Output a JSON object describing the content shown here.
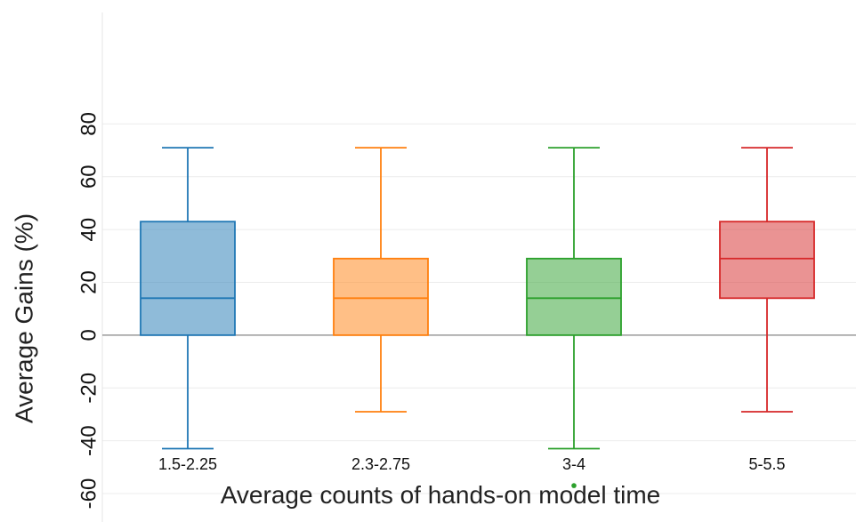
{
  "chart_data": {
    "type": "box",
    "title": "",
    "xlabel": "Average counts of hands-on model time",
    "ylabel": "Average Gains (%)",
    "ylim": [
      -60,
      100
    ],
    "yticks": [
      -60,
      -40,
      -20,
      0,
      20,
      40,
      60,
      80
    ],
    "grid": true,
    "categories": [
      "1.5-2.25",
      "2.3-2.75",
      "3-4",
      "5-5.5"
    ],
    "series": [
      {
        "category": "1.5-2.25",
        "color": "#1f77b4",
        "whisker_low": -43,
        "q1": 0,
        "median": 14,
        "q3": 43,
        "whisker_high": 71,
        "outliers": []
      },
      {
        "category": "2.3-2.75",
        "color": "#ff7f0e",
        "whisker_low": -29,
        "q1": 0,
        "median": 14,
        "q3": 29,
        "whisker_high": 71,
        "outliers": []
      },
      {
        "category": "3-4",
        "color": "#2ca02c",
        "whisker_low": -43,
        "q1": 0,
        "median": 14,
        "q3": 29,
        "whisker_high": 71,
        "outliers": [
          -57
        ]
      },
      {
        "category": "5-5.5",
        "color": "#d62728",
        "whisker_low": -29,
        "q1": 14,
        "median": 29,
        "q3": 43,
        "whisker_high": 71,
        "outliers": []
      }
    ]
  }
}
